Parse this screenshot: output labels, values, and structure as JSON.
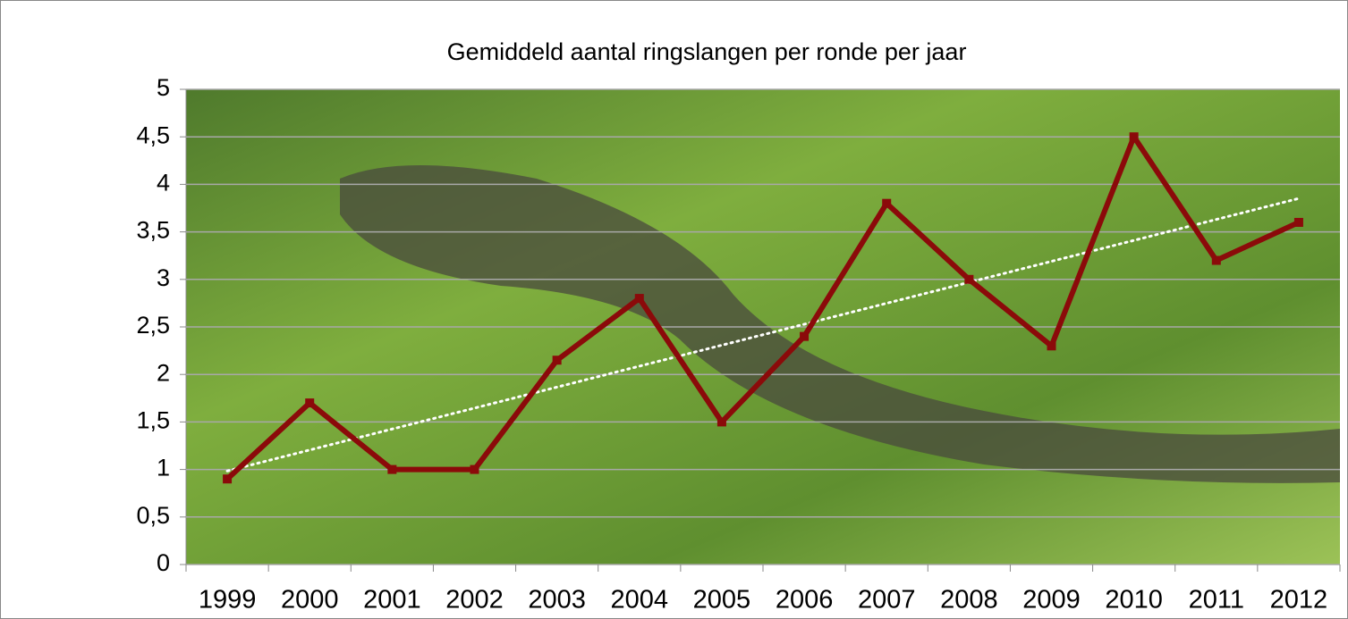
{
  "chart_data": {
    "type": "line",
    "title": "Gemiddeld aantal ringslangen per ronde per jaar",
    "categories": [
      "1999",
      "2000",
      "2001",
      "2002",
      "2003",
      "2004",
      "2005",
      "2006",
      "2007",
      "2008",
      "2009",
      "2010",
      "2011",
      "2012"
    ],
    "series": [
      {
        "color": "#8b0a0a",
        "values": [
          0.9,
          1.7,
          1.0,
          1.0,
          2.15,
          2.8,
          1.5,
          2.4,
          3.8,
          3.0,
          2.3,
          4.5,
          3.2,
          3.6
        ]
      }
    ],
    "trendline": "linear",
    "ylim": [
      0,
      5
    ],
    "yticks": [
      0,
      {
        "value": 0.5,
        "label": "0,5"
      },
      1,
      {
        "value": 1.5,
        "label": "1,5"
      },
      2,
      {
        "value": 2.5,
        "label": "2,5"
      },
      3,
      {
        "value": 3.5,
        "label": "3,5"
      },
      4,
      {
        "value": 4.5,
        "label": "4,5"
      },
      5
    ],
    "grid": true
  }
}
